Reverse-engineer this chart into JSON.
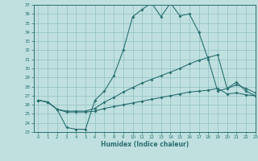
{
  "xlabel": "Humidex (Indice chaleur)",
  "bg_color": "#c0e0e0",
  "line_color": "#2a7070",
  "grid_color": "#90c0c0",
  "ylim": [
    23,
    37
  ],
  "xlim": [
    -0.5,
    23
  ],
  "yticks": [
    23,
    24,
    25,
    26,
    27,
    28,
    29,
    30,
    31,
    32,
    33,
    34,
    35,
    36,
    37
  ],
  "xticks": [
    0,
    1,
    2,
    3,
    4,
    5,
    6,
    7,
    8,
    9,
    10,
    11,
    12,
    13,
    14,
    15,
    16,
    17,
    18,
    19,
    20,
    21,
    22,
    23
  ],
  "line1_x": [
    0,
    1,
    2,
    3,
    4,
    5,
    6,
    7,
    8,
    9,
    10,
    11,
    12,
    13,
    14,
    15,
    16,
    17,
    18,
    19,
    20,
    21,
    22,
    23
  ],
  "line1_y": [
    26.5,
    26.3,
    25.5,
    23.5,
    23.3,
    23.3,
    26.5,
    27.5,
    29.2,
    32.0,
    35.7,
    36.5,
    37.2,
    35.7,
    37.2,
    35.8,
    36.0,
    34.0,
    31.0,
    27.5,
    27.8,
    28.5,
    27.5,
    27.0
  ],
  "line2_x": [
    0,
    1,
    2,
    3,
    4,
    5,
    6,
    7,
    8,
    9,
    10,
    11,
    12,
    13,
    14,
    15,
    16,
    17,
    18,
    19,
    20,
    21,
    22,
    23
  ],
  "line2_y": [
    26.5,
    26.3,
    25.5,
    25.3,
    25.3,
    25.3,
    25.6,
    26.3,
    26.8,
    27.4,
    27.9,
    28.4,
    28.8,
    29.2,
    29.6,
    30.0,
    30.5,
    30.9,
    31.2,
    31.5,
    27.8,
    28.2,
    27.8,
    27.3
  ],
  "line3_x": [
    0,
    1,
    2,
    3,
    4,
    5,
    6,
    7,
    8,
    9,
    10,
    11,
    12,
    13,
    14,
    15,
    16,
    17,
    18,
    19,
    20,
    21,
    22,
    23
  ],
  "line3_y": [
    26.5,
    26.3,
    25.5,
    25.2,
    25.2,
    25.2,
    25.3,
    25.6,
    25.8,
    26.0,
    26.2,
    26.4,
    26.6,
    26.8,
    27.0,
    27.2,
    27.4,
    27.5,
    27.6,
    27.8,
    27.2,
    27.3,
    27.1,
    27.0
  ]
}
